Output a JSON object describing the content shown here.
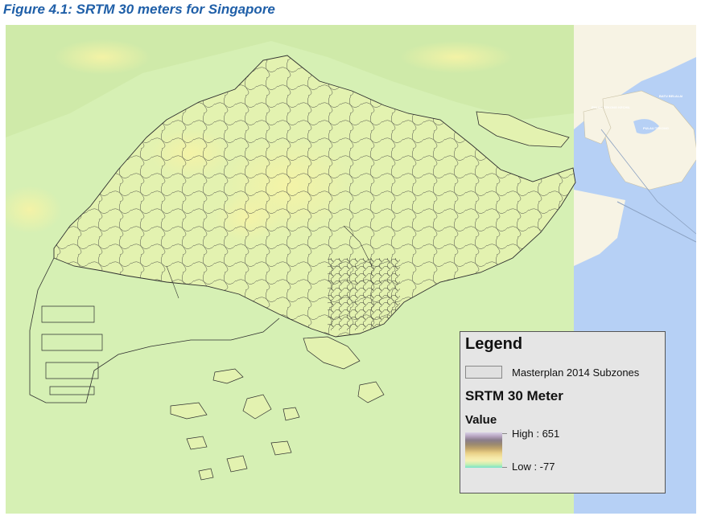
{
  "figure": {
    "caption": "Figure 4.1: SRTM 30 meters for Singapore"
  },
  "map": {
    "basemap_labels": {
      "pulau_tekong_kechil": "PULAU TEKONG KECHIL",
      "pulau_tekong": "PULAU TEKONG",
      "batu_belalai": "BATU BELALAI"
    },
    "colors": {
      "land_green": "#d6f0b4",
      "dem_yellow": "#f2f0a8",
      "boundary": "#2e2e2e",
      "sea_blue": "#b6d0f5",
      "basemap_land": "#f7f3e4"
    }
  },
  "legend": {
    "title": "Legend",
    "subzones_label": "Masterplan 2014 Subzones",
    "layer_title": "SRTM 30 Meter",
    "value_heading": "Value",
    "high_label": "High : 651",
    "low_label": "Low : -77",
    "high_value": 651,
    "low_value": -77
  }
}
